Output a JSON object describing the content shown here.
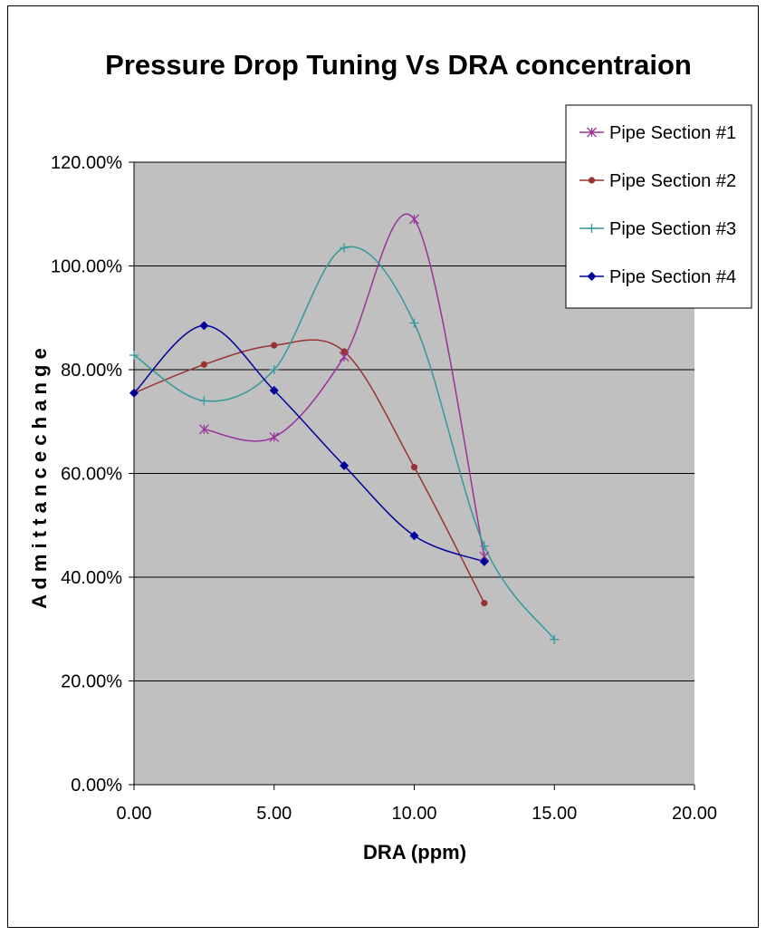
{
  "chart_data": {
    "type": "line",
    "title": "Pressure Drop Tuning Vs DRA concentraion",
    "xlabel": "DRA (ppm)",
    "ylabel": "A d m i t t a n c e   c h a n g e",
    "xlim": [
      0,
      20
    ],
    "ylim": [
      0,
      1.2
    ],
    "x_ticks": [
      "0.00",
      "5.00",
      "10.00",
      "15.00",
      "20.00"
    ],
    "y_ticks": [
      "0.00%",
      "20.00%",
      "40.00%",
      "60.00%",
      "80.00%",
      "100.00%",
      "120.00%"
    ],
    "grid": "horizontal",
    "plot_background": "#c0c0c0",
    "legend_position": "top-right",
    "smooth_lines": true,
    "series": [
      {
        "name": "Pipe Section #1",
        "color": "#993399",
        "marker": "star",
        "x": [
          2.5,
          5,
          7.5,
          10,
          12.5
        ],
        "y": [
          0.685,
          0.67,
          0.825,
          1.09,
          0.44
        ]
      },
      {
        "name": "Pipe Section #2",
        "color": "#993333",
        "marker": "circle",
        "x": [
          0,
          2.5,
          5,
          7.5,
          10,
          12.5
        ],
        "y": [
          0.755,
          0.81,
          0.847,
          0.835,
          0.612,
          0.35
        ]
      },
      {
        "name": "Pipe Section #3",
        "color": "#339999",
        "marker": "plus",
        "x": [
          0,
          2.5,
          5,
          7.5,
          10,
          12.5,
          15
        ],
        "y": [
          0.828,
          0.74,
          0.8,
          1.035,
          0.89,
          0.46,
          0.28
        ]
      },
      {
        "name": "Pipe Section #4",
        "color": "#000099",
        "marker": "diamond",
        "x": [
          0,
          2.5,
          5,
          7.5,
          10,
          12.5
        ],
        "y": [
          0.755,
          0.885,
          0.76,
          0.615,
          0.48,
          0.43
        ]
      }
    ]
  }
}
